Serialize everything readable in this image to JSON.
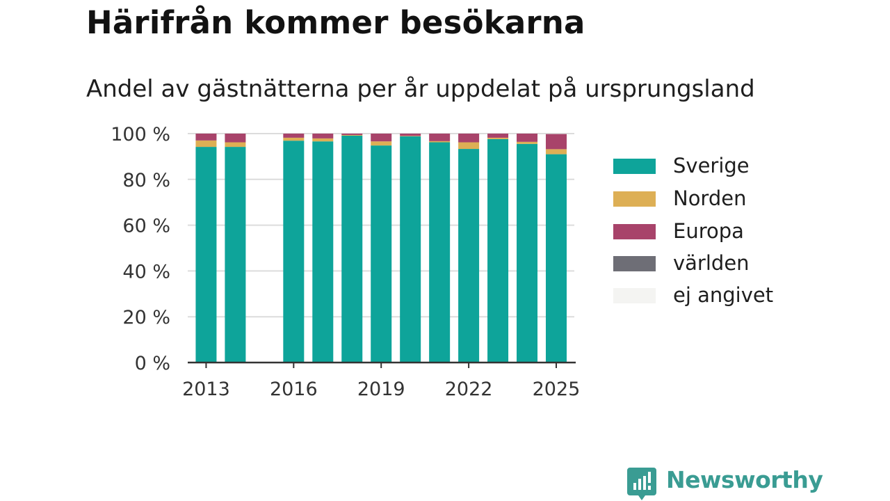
{
  "title": "Härifrån kommer besökarna",
  "subtitle": "Andel av gästnätterna per år uppdelat på ursprungsland",
  "brand": {
    "name": "Newsworthy",
    "icon": "newsworthy-logo-icon",
    "color": "#3a9c93"
  },
  "legend": [
    {
      "label": "Sverige",
      "color": "#0ea49a"
    },
    {
      "label": "Norden",
      "color": "#ddaf55"
    },
    {
      "label": "Europa",
      "color": "#a8436a"
    },
    {
      "label": "världen",
      "color": "#6e6e76"
    },
    {
      "label": "ej angivet",
      "color": "#f4f4f2"
    }
  ],
  "chart_data": {
    "type": "bar",
    "stacked": true,
    "title": "Härifrån kommer besökarna",
    "subtitle": "Andel av gästnätterna per år uppdelat på ursprungsland",
    "xlabel": "",
    "ylabel": "",
    "ylim": [
      0,
      100
    ],
    "y_ticks": [
      0,
      20,
      40,
      60,
      80,
      100
    ],
    "y_tick_suffix": " %",
    "x_tick_labels": [
      "2013",
      "2016",
      "2019",
      "2022",
      "2025"
    ],
    "grid": true,
    "legend_position": "right",
    "categories": [
      "2013",
      "2014",
      "2015",
      "2016",
      "2017",
      "2018",
      "2019",
      "2020",
      "2021",
      "2022",
      "2023",
      "2024",
      "2025"
    ],
    "series": [
      {
        "name": "Sverige",
        "color": "#0ea49a",
        "values": [
          94.2,
          94.2,
          null,
          96.9,
          96.6,
          99.1,
          94.8,
          98.8,
          96.2,
          93.3,
          97.6,
          95.5,
          91.0
        ]
      },
      {
        "name": "Norden",
        "color": "#ddaf55",
        "values": [
          2.8,
          2.0,
          null,
          1.3,
          1.3,
          0.3,
          1.8,
          0.2,
          0.5,
          2.9,
          0.6,
          0.9,
          2.2
        ]
      },
      {
        "name": "Europa",
        "color": "#a8436a",
        "values": [
          3.0,
          3.8,
          null,
          1.8,
          2.1,
          0.6,
          3.4,
          1.0,
          3.3,
          3.8,
          1.8,
          3.6,
          6.6
        ]
      },
      {
        "name": "världen",
        "color": "#6e6e76",
        "values": [
          0,
          0,
          null,
          0,
          0,
          0,
          0,
          0,
          0,
          0,
          0,
          0,
          0
        ]
      },
      {
        "name": "ej angivet",
        "color": "#f4f4f2",
        "values": [
          0,
          0,
          null,
          0,
          0,
          0,
          0,
          0,
          0,
          0,
          0,
          0,
          0
        ]
      }
    ]
  }
}
